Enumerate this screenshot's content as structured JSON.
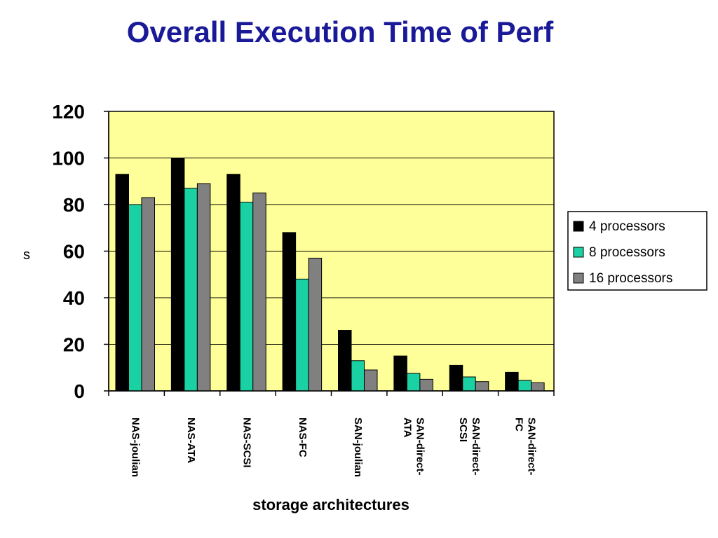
{
  "slide": {
    "title": "Overall Execution Time of Perf"
  },
  "chart_data": {
    "type": "bar",
    "title": "Overall Execution Time of Perf",
    "xlabel": "storage architectures",
    "ylabel": "s",
    "ylim": [
      0,
      120
    ],
    "yticks": [
      "0",
      "20",
      "40",
      "60",
      "80",
      "100",
      "120"
    ],
    "categories": [
      [
        "NAS-joulian"
      ],
      [
        "NAS-ATA"
      ],
      [
        "NAS-SCSI"
      ],
      [
        "NAS-FC"
      ],
      [
        "SAN-joulian"
      ],
      [
        "SAN-direct-",
        "ATA"
      ],
      [
        "SAN-direct-",
        "SCSI"
      ],
      [
        "SAN-direct-",
        "FC"
      ]
    ],
    "series": [
      {
        "name": "4 processors",
        "color": "#000000",
        "values": [
          93,
          100,
          93,
          68,
          26,
          15,
          11,
          8
        ]
      },
      {
        "name": "8 processors",
        "color": "#1ad1a3",
        "values": [
          80,
          87,
          81,
          48,
          13,
          7.5,
          6,
          4.5
        ]
      },
      {
        "name": "16 processors",
        "color": "#808080",
        "values": [
          83,
          89,
          85,
          57,
          9,
          5,
          4,
          3.5
        ]
      }
    ],
    "grid": true,
    "plot_background": "#ffff99",
    "legend_position": "right"
  }
}
